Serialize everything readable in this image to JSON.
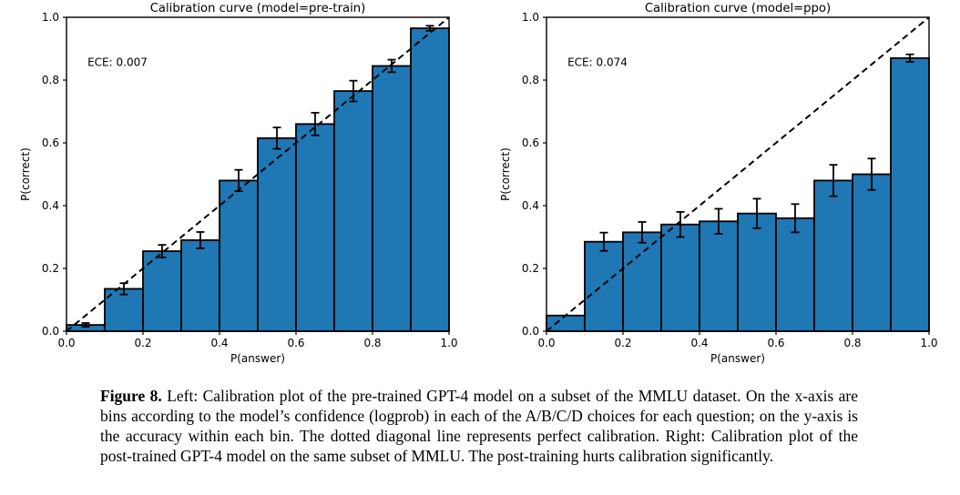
{
  "figure": {
    "caption_label": "Figure 8.",
    "caption_text": "Left: Calibration plot of the pre-trained GPT-4 model on a subset of the MMLU dataset. On the x-axis are bins according to the model’s confidence (logprob) in each of the A/B/C/D choices for each question; on the y-axis is the accuracy within each bin. The dotted diagonal line represents perfect calibration. Right: Calibration plot of the post-trained GPT-4 model on the same subset of MMLU. The post-training hurts calibration significantly."
  },
  "chart_data": [
    {
      "type": "bar",
      "title": "Calibration curve (model=pre-train)",
      "annotation": "ECE: 0.007",
      "xlabel": "P(answer)",
      "ylabel": "P(correct)",
      "xlim": [
        0.0,
        1.0
      ],
      "ylim": [
        0.0,
        1.0
      ],
      "xticks": [
        0.0,
        0.2,
        0.4,
        0.6,
        0.8,
        1.0
      ],
      "yticks": [
        0.0,
        0.2,
        0.4,
        0.6,
        0.8,
        1.0
      ],
      "grid": false,
      "legend": "none",
      "bin_edges": [
        0.0,
        0.1,
        0.2,
        0.3,
        0.4,
        0.5,
        0.6,
        0.7,
        0.8,
        0.9,
        1.0
      ],
      "values": [
        0.02,
        0.135,
        0.255,
        0.29,
        0.48,
        0.615,
        0.66,
        0.765,
        0.845,
        0.965
      ],
      "errors": [
        0.006,
        0.018,
        0.02,
        0.026,
        0.034,
        0.034,
        0.036,
        0.033,
        0.02,
        0.008
      ],
      "diagonal": {
        "style": "dashed",
        "from": [
          0.0,
          0.0
        ],
        "to": [
          1.0,
          1.0
        ],
        "meaning": "perfect calibration"
      },
      "bar_color": "#1f77b4",
      "bar_edge_color": "#000000"
    },
    {
      "type": "bar",
      "title": "Calibration curve (model=ppo)",
      "annotation": "ECE: 0.074",
      "xlabel": "P(answer)",
      "ylabel": "P(correct)",
      "xlim": [
        0.0,
        1.0
      ],
      "ylim": [
        0.0,
        1.0
      ],
      "xticks": [
        0.0,
        0.2,
        0.4,
        0.6,
        0.8,
        1.0
      ],
      "yticks": [
        0.0,
        0.2,
        0.4,
        0.6,
        0.8,
        1.0
      ],
      "grid": false,
      "legend": "none",
      "bin_edges": [
        0.0,
        0.1,
        0.2,
        0.3,
        0.4,
        0.5,
        0.6,
        0.7,
        0.8,
        0.9,
        1.0
      ],
      "values": [
        0.05,
        0.285,
        0.315,
        0.34,
        0.35,
        0.375,
        0.36,
        0.48,
        0.5,
        0.87
      ],
      "errors": [
        0,
        0.029,
        0.033,
        0.04,
        0.04,
        0.047,
        0.045,
        0.05,
        0.05,
        0.012
      ],
      "diagonal": {
        "style": "dashed",
        "from": [
          0.0,
          0.0
        ],
        "to": [
          1.0,
          1.0
        ],
        "meaning": "perfect calibration"
      },
      "bar_color": "#1f77b4",
      "bar_edge_color": "#000000"
    }
  ]
}
